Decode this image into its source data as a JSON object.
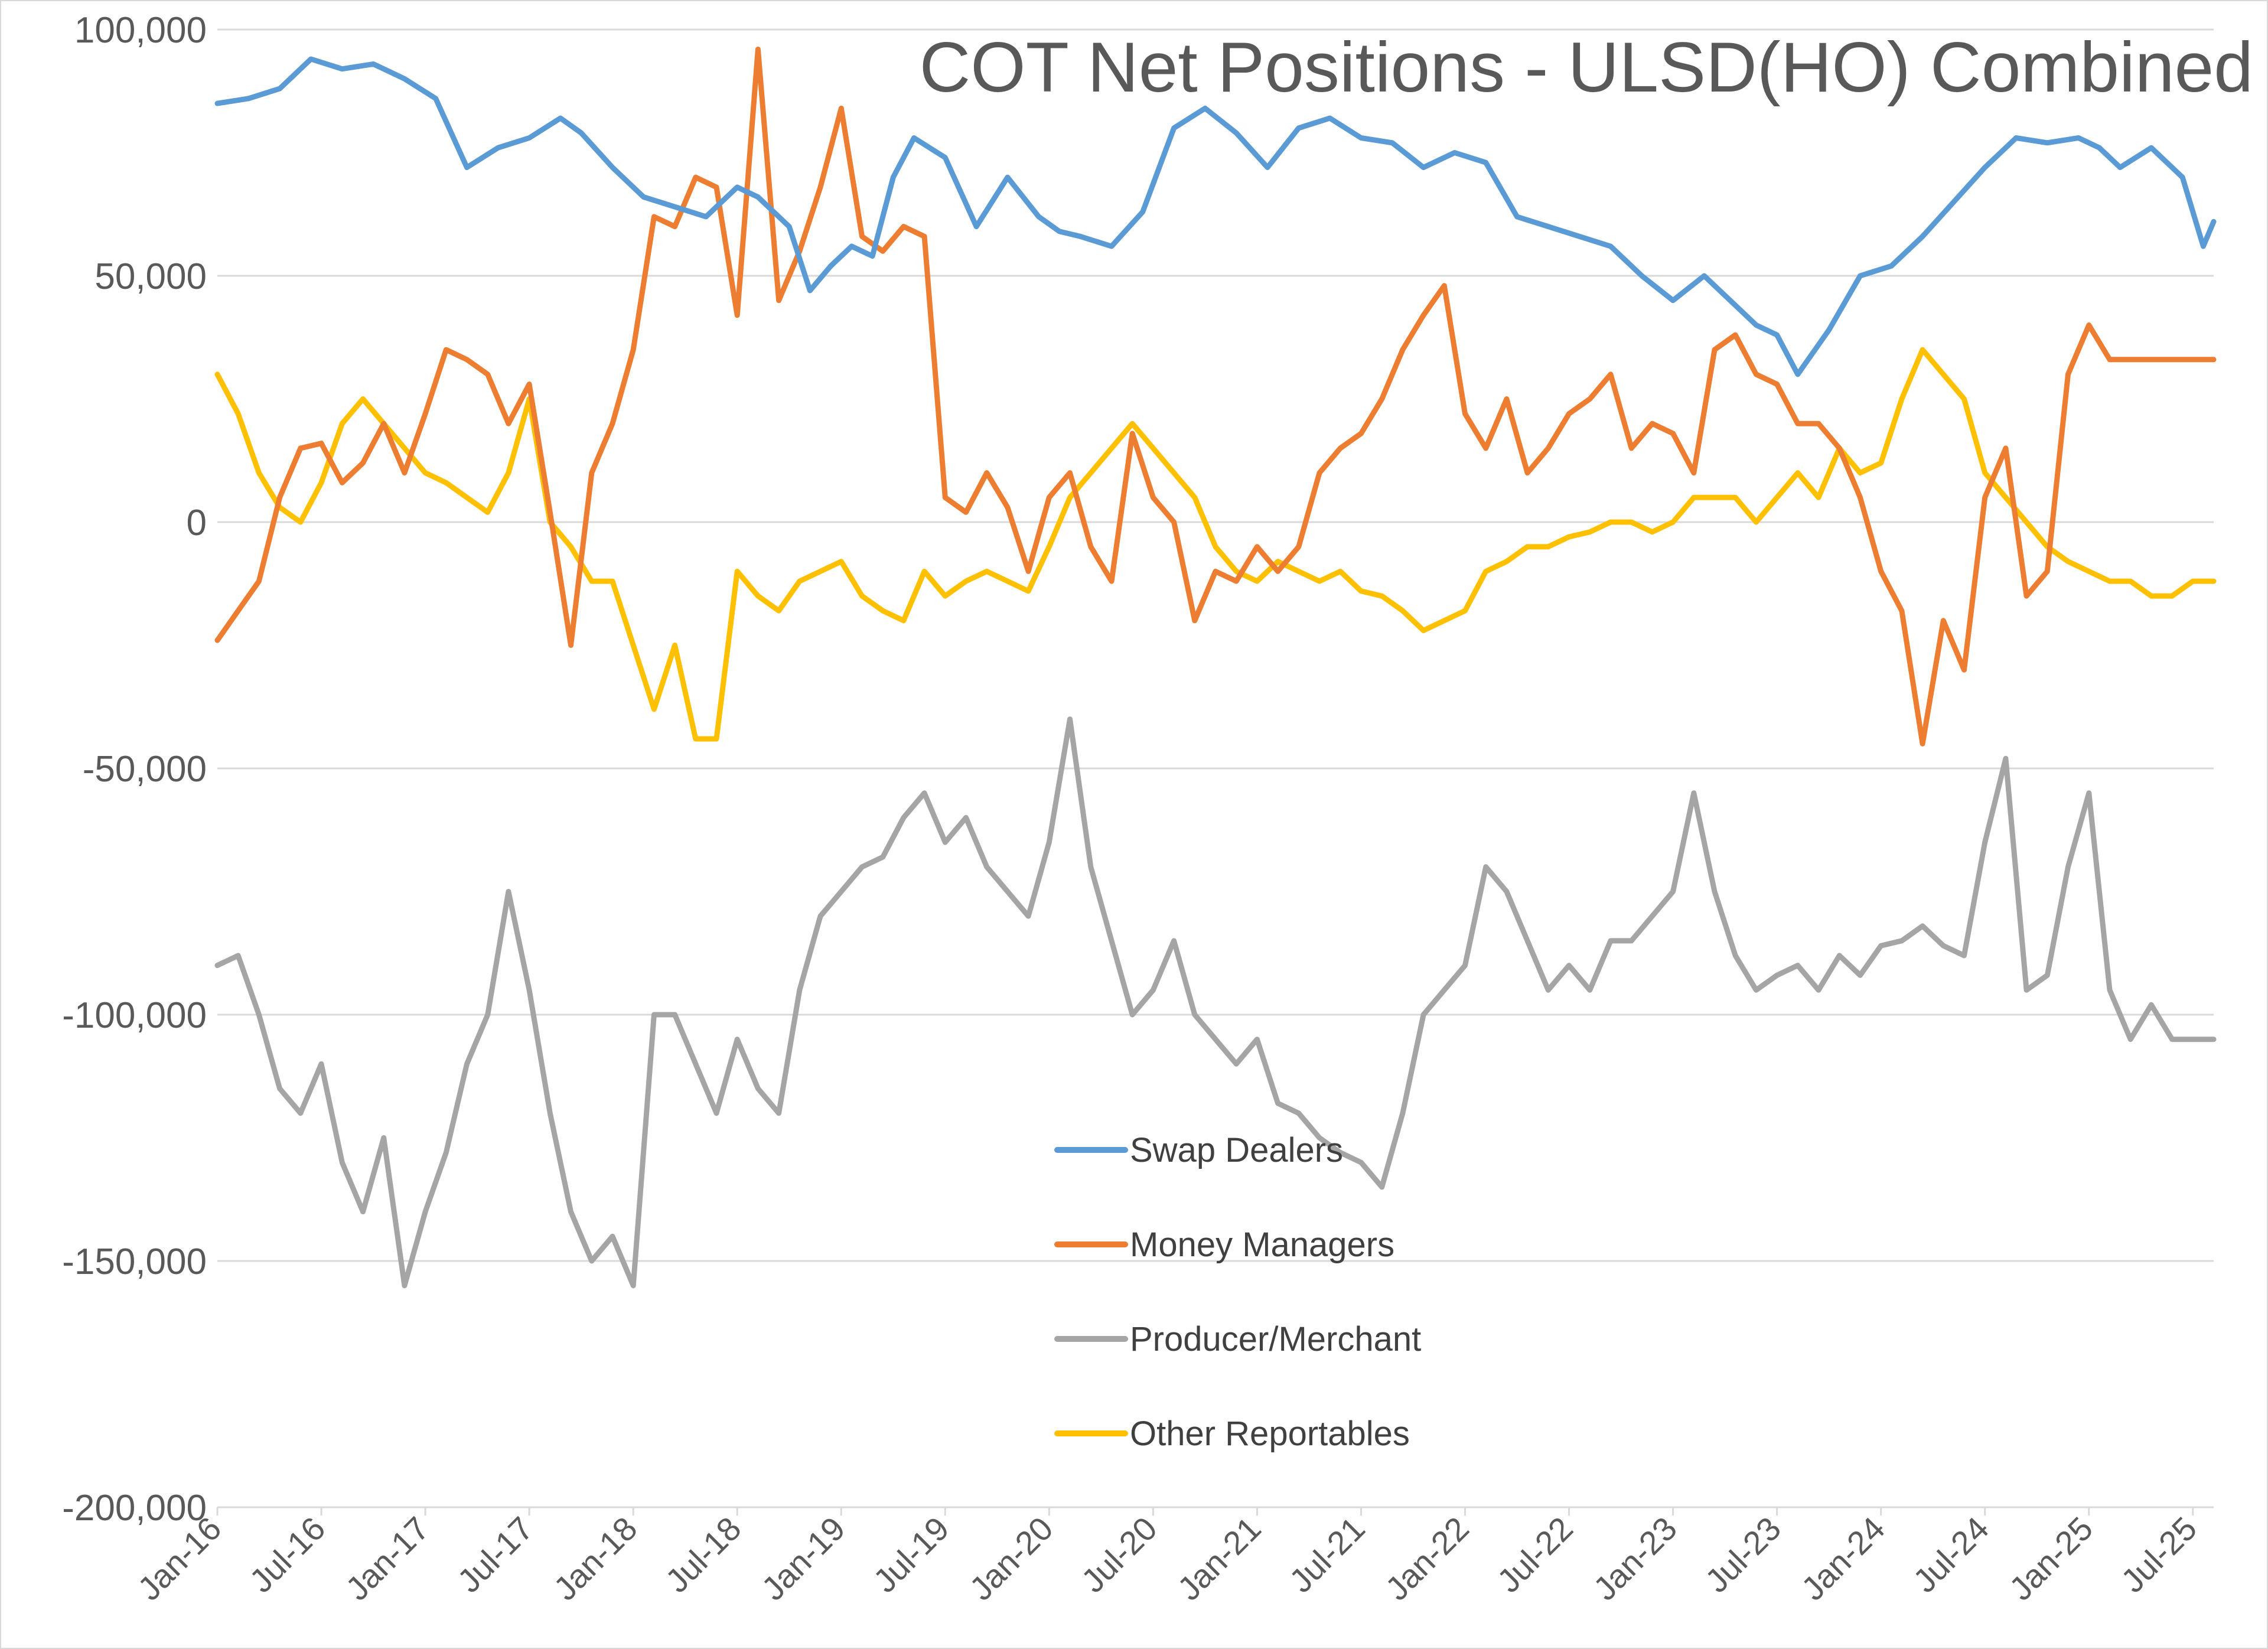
{
  "chart_data": {
    "type": "line",
    "title": "COT Net Positions - ULSD(HO) Combined",
    "xlabel": "",
    "ylabel": "",
    "ylim": [
      -200000,
      100000
    ],
    "yticks": [
      100000,
      50000,
      0,
      -50000,
      -100000,
      -150000,
      -200000
    ],
    "ytick_labels": [
      "100,000",
      "50,000",
      "0",
      "-50,000",
      "-100,000",
      "-150,000",
      "-200,000"
    ],
    "xlim": [
      0,
      9.6
    ],
    "xtick_positions": [
      0,
      0.5,
      1,
      1.5,
      2,
      2.5,
      3,
      3.5,
      4,
      4.5,
      5,
      5.5,
      6,
      6.5,
      7,
      7.5,
      8,
      8.5,
      9,
      9.5
    ],
    "xtick_labels": [
      "Jan-16",
      "Jul-16",
      "Jan-17",
      "Jul-17",
      "Jan-18",
      "Jul-18",
      "Jan-19",
      "Jul-19",
      "Jan-20",
      "Jul-20",
      "Jan-21",
      "Jul-21",
      "Jan-22",
      "Jul-22",
      "Jan-23",
      "Jul-23",
      "Jan-24",
      "Jul-24",
      "Jan-25",
      "Jul-25"
    ],
    "grid": true,
    "legend_position": "center-bottom",
    "series": [
      {
        "name": "Swap Dealers",
        "color": "#5b9bd5",
        "x": [
          0,
          0.15,
          0.3,
          0.45,
          0.6,
          0.75,
          0.9,
          1.05,
          1.2,
          1.35,
          1.5,
          1.65,
          1.75,
          1.9,
          2.05,
          2.2,
          2.35,
          2.5,
          2.6,
          2.75,
          2.85,
          2.95,
          3.05,
          3.15,
          3.25,
          3.35,
          3.5,
          3.65,
          3.8,
          3.95,
          4.05,
          4.15,
          4.3,
          4.45,
          4.6,
          4.75,
          4.9,
          5.05,
          5.2,
          5.35,
          5.5,
          5.65,
          5.8,
          5.95,
          6.1,
          6.25,
          6.4,
          6.55,
          6.7,
          6.85,
          7.0,
          7.15,
          7.3,
          7.4,
          7.5,
          7.6,
          7.75,
          7.9,
          8.05,
          8.2,
          8.35,
          8.5,
          8.65,
          8.8,
          8.95,
          9.05,
          9.15,
          9.3,
          9.45,
          9.55,
          9.6
        ],
        "values": [
          85000,
          86000,
          88000,
          94000,
          92000,
          93000,
          90000,
          86000,
          72000,
          76000,
          78000,
          82000,
          79000,
          72000,
          66000,
          64000,
          62000,
          68000,
          66000,
          60000,
          47000,
          52000,
          56000,
          54000,
          70000,
          78000,
          74000,
          60000,
          70000,
          62000,
          59000,
          58000,
          56000,
          63000,
          80000,
          84000,
          79000,
          72000,
          80000,
          82000,
          78000,
          77000,
          72000,
          75000,
          73000,
          62000,
          60000,
          58000,
          56000,
          50000,
          45000,
          50000,
          44000,
          40000,
          38000,
          30000,
          39000,
          50000,
          52000,
          58000,
          65000,
          72000,
          78000,
          77000,
          78000,
          76000,
          72000,
          76000,
          70000,
          56000,
          61000
        ]
      },
      {
        "name": "Money Managers",
        "color": "#ed7d31",
        "x": [
          0,
          0.1,
          0.2,
          0.3,
          0.4,
          0.5,
          0.6,
          0.7,
          0.8,
          0.9,
          1.0,
          1.1,
          1.2,
          1.3,
          1.4,
          1.5,
          1.6,
          1.7,
          1.8,
          1.9,
          2.0,
          2.1,
          2.2,
          2.3,
          2.4,
          2.5,
          2.6,
          2.7,
          2.8,
          2.9,
          3.0,
          3.1,
          3.2,
          3.3,
          3.4,
          3.5,
          3.6,
          3.7,
          3.8,
          3.9,
          4.0,
          4.1,
          4.2,
          4.3,
          4.4,
          4.5,
          4.6,
          4.7,
          4.8,
          4.9,
          5.0,
          5.1,
          5.2,
          5.3,
          5.4,
          5.5,
          5.6,
          5.7,
          5.8,
          5.9,
          6.0,
          6.1,
          6.2,
          6.3,
          6.4,
          6.5,
          6.6,
          6.7,
          6.8,
          6.9,
          7.0,
          7.1,
          7.2,
          7.3,
          7.4,
          7.5,
          7.6,
          7.7,
          7.8,
          7.9,
          8.0,
          8.1,
          8.2,
          8.3,
          8.4,
          8.5,
          8.6,
          8.7,
          8.8,
          8.9,
          9.0,
          9.1,
          9.2,
          9.3,
          9.4,
          9.5,
          9.6
        ],
        "values": [
          -24000,
          -18000,
          -12000,
          5000,
          15000,
          16000,
          8000,
          12000,
          20000,
          10000,
          22000,
          35000,
          33000,
          30000,
          20000,
          28000,
          2000,
          -25000,
          10000,
          20000,
          35000,
          62000,
          60000,
          70000,
          68000,
          42000,
          96000,
          45000,
          55000,
          68000,
          84000,
          58000,
          55000,
          60000,
          58000,
          5000,
          2000,
          10000,
          3000,
          -10000,
          5000,
          10000,
          -5000,
          -12000,
          18000,
          5000,
          0,
          -20000,
          -10000,
          -12000,
          -5000,
          -10000,
          -5000,
          10000,
          15000,
          18000,
          25000,
          35000,
          42000,
          48000,
          22000,
          15000,
          25000,
          10000,
          15000,
          22000,
          25000,
          30000,
          15000,
          20000,
          18000,
          10000,
          35000,
          38000,
          30000,
          28000,
          20000,
          20000,
          15000,
          5000,
          -10000,
          -18000,
          -45000,
          -20000,
          -30000,
          5000,
          15000,
          -15000,
          -10000,
          30000,
          40000,
          33000,
          33000,
          33000,
          33000,
          33000,
          33000
        ]
      },
      {
        "name": "Producer/Merchant",
        "color": "#a5a5a5",
        "x": [
          0,
          0.1,
          0.2,
          0.3,
          0.4,
          0.5,
          0.6,
          0.7,
          0.8,
          0.9,
          1.0,
          1.1,
          1.2,
          1.3,
          1.4,
          1.5,
          1.6,
          1.7,
          1.8,
          1.9,
          2.0,
          2.1,
          2.2,
          2.3,
          2.4,
          2.5,
          2.6,
          2.7,
          2.8,
          2.9,
          3.0,
          3.1,
          3.2,
          3.3,
          3.4,
          3.5,
          3.6,
          3.7,
          3.8,
          3.9,
          4.0,
          4.1,
          4.2,
          4.3,
          4.4,
          4.5,
          4.6,
          4.7,
          4.8,
          4.9,
          5.0,
          5.1,
          5.2,
          5.3,
          5.4,
          5.5,
          5.6,
          5.7,
          5.8,
          5.9,
          6.0,
          6.1,
          6.2,
          6.3,
          6.4,
          6.5,
          6.6,
          6.7,
          6.8,
          6.9,
          7.0,
          7.1,
          7.2,
          7.3,
          7.4,
          7.5,
          7.6,
          7.7,
          7.8,
          7.9,
          8.0,
          8.1,
          8.2,
          8.3,
          8.4,
          8.5,
          8.6,
          8.7,
          8.8,
          8.9,
          9.0,
          9.1,
          9.2,
          9.3,
          9.4,
          9.5,
          9.6
        ],
        "values": [
          -90000,
          -88000,
          -100000,
          -115000,
          -120000,
          -110000,
          -130000,
          -140000,
          -125000,
          -155000,
          -140000,
          -128000,
          -110000,
          -100000,
          -75000,
          -95000,
          -120000,
          -140000,
          -150000,
          -145000,
          -155000,
          -100000,
          -100000,
          -110000,
          -120000,
          -105000,
          -115000,
          -120000,
          -95000,
          -80000,
          -75000,
          -70000,
          -68000,
          -60000,
          -55000,
          -65000,
          -60000,
          -70000,
          -75000,
          -80000,
          -65000,
          -40000,
          -70000,
          -85000,
          -100000,
          -95000,
          -85000,
          -100000,
          -105000,
          -110000,
          -105000,
          -118000,
          -120000,
          -125000,
          -128000,
          -130000,
          -135000,
          -120000,
          -100000,
          -95000,
          -90000,
          -70000,
          -75000,
          -85000,
          -95000,
          -90000,
          -95000,
          -85000,
          -85000,
          -80000,
          -75000,
          -55000,
          -75000,
          -88000,
          -95000,
          -92000,
          -90000,
          -95000,
          -88000,
          -92000,
          -86000,
          -85000,
          -82000,
          -86000,
          -88000,
          -65000,
          -48000,
          -95000,
          -92000,
          -70000,
          -55000,
          -95000,
          -105000,
          -98000,
          -105000,
          -105000,
          -105000
        ]
      },
      {
        "name": "Other Reportables",
        "color": "#ffc000",
        "x": [
          0,
          0.1,
          0.2,
          0.3,
          0.4,
          0.5,
          0.6,
          0.7,
          0.8,
          0.9,
          1.0,
          1.1,
          1.2,
          1.3,
          1.4,
          1.5,
          1.6,
          1.7,
          1.8,
          1.9,
          2.0,
          2.1,
          2.2,
          2.3,
          2.4,
          2.5,
          2.6,
          2.7,
          2.8,
          2.9,
          3.0,
          3.1,
          3.2,
          3.3,
          3.4,
          3.5,
          3.6,
          3.7,
          3.8,
          3.9,
          4.0,
          4.1,
          4.2,
          4.3,
          4.4,
          4.5,
          4.6,
          4.7,
          4.8,
          4.9,
          5.0,
          5.1,
          5.2,
          5.3,
          5.4,
          5.5,
          5.6,
          5.7,
          5.8,
          5.9,
          6.0,
          6.1,
          6.2,
          6.3,
          6.4,
          6.5,
          6.6,
          6.7,
          6.8,
          6.9,
          7.0,
          7.1,
          7.2,
          7.3,
          7.4,
          7.5,
          7.6,
          7.7,
          7.8,
          7.9,
          8.0,
          8.1,
          8.2,
          8.3,
          8.4,
          8.5,
          8.6,
          8.7,
          8.8,
          8.9,
          9.0,
          9.1,
          9.2,
          9.3,
          9.4,
          9.5,
          9.6
        ],
        "values": [
          30000,
          22000,
          10000,
          3000,
          0,
          8000,
          20000,
          25000,
          20000,
          15000,
          10000,
          8000,
          5000,
          2000,
          10000,
          25000,
          0,
          -5000,
          -12000,
          -12000,
          -25000,
          -38000,
          -25000,
          -44000,
          -44000,
          -10000,
          -15000,
          -18000,
          -12000,
          -10000,
          -8000,
          -15000,
          -18000,
          -20000,
          -10000,
          -15000,
          -12000,
          -10000,
          -12000,
          -14000,
          -5000,
          5000,
          10000,
          15000,
          20000,
          15000,
          10000,
          5000,
          -5000,
          -10000,
          -12000,
          -8000,
          -10000,
          -12000,
          -10000,
          -14000,
          -15000,
          -18000,
          -22000,
          -20000,
          -18000,
          -10000,
          -8000,
          -5000,
          -5000,
          -3000,
          -2000,
          0,
          0,
          -2000,
          0,
          5000,
          5000,
          5000,
          0,
          5000,
          10000,
          5000,
          15000,
          10000,
          12000,
          25000,
          35000,
          30000,
          25000,
          10000,
          5000,
          0,
          -5000,
          -8000,
          -10000,
          -12000,
          -12000,
          -15000,
          -15000,
          -12000,
          -12000
        ]
      }
    ]
  }
}
